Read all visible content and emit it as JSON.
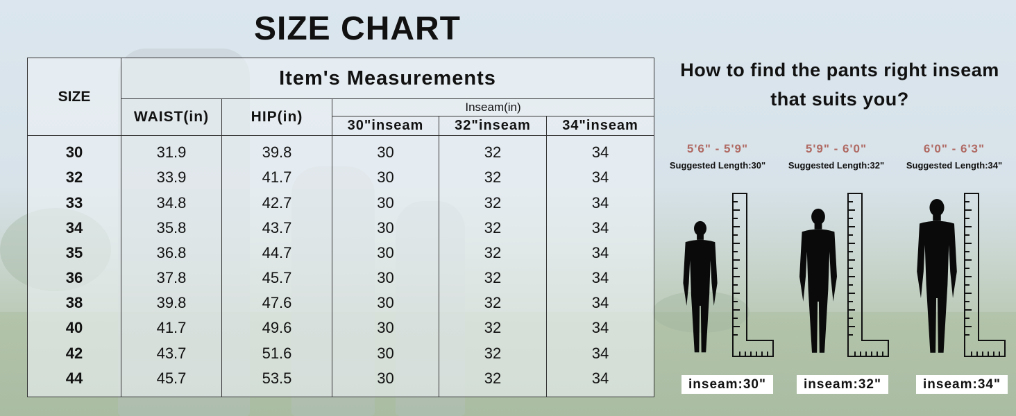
{
  "title": "SIZE CHART",
  "table": {
    "size_header": "SIZE",
    "measurements_header": "Item's Measurements",
    "waist_header": "WAIST(in)",
    "hip_header": "HIP(in)",
    "inseam_group_header": "Inseam(in)",
    "inseam_sub_headers": [
      "30\"inseam",
      "32\"inseam",
      "34\"inseam"
    ],
    "rows": [
      {
        "size": "30",
        "waist": "31.9",
        "hip": "39.8",
        "i30": "30",
        "i32": "32",
        "i34": "34"
      },
      {
        "size": "32",
        "waist": "33.9",
        "hip": "41.7",
        "i30": "30",
        "i32": "32",
        "i34": "34"
      },
      {
        "size": "33",
        "waist": "34.8",
        "hip": "42.7",
        "i30": "30",
        "i32": "32",
        "i34": "34"
      },
      {
        "size": "34",
        "waist": "35.8",
        "hip": "43.7",
        "i30": "30",
        "i32": "32",
        "i34": "34"
      },
      {
        "size": "35",
        "waist": "36.8",
        "hip": "44.7",
        "i30": "30",
        "i32": "32",
        "i34": "34"
      },
      {
        "size": "36",
        "waist": "37.8",
        "hip": "45.7",
        "i30": "30",
        "i32": "32",
        "i34": "34"
      },
      {
        "size": "38",
        "waist": "39.8",
        "hip": "47.6",
        "i30": "30",
        "i32": "32",
        "i34": "34"
      },
      {
        "size": "40",
        "waist": "41.7",
        "hip": "49.6",
        "i30": "30",
        "i32": "32",
        "i34": "34"
      },
      {
        "size": "42",
        "waist": "43.7",
        "hip": "51.6",
        "i30": "30",
        "i32": "32",
        "i34": "34"
      },
      {
        "size": "44",
        "waist": "45.7",
        "hip": "53.5",
        "i30": "30",
        "i32": "32",
        "i34": "34"
      }
    ]
  },
  "guide": {
    "title_line1": "How to find the pants right inseam",
    "title_line2": "that suits you?",
    "figures": [
      {
        "range": "5'6\" - 5'9\"",
        "suggested": "Suggested Length:30\"",
        "inseam_label": "inseam:30\""
      },
      {
        "range": "5'9\" - 6'0\"",
        "suggested": "Suggested Length:32\"",
        "inseam_label": "inseam:32\""
      },
      {
        "range": "6'0\" - 6'3\"",
        "suggested": "Suggested Length:34\"",
        "inseam_label": "inseam:34\""
      }
    ]
  },
  "colors": {
    "range_text": "#b06a63",
    "silhouette": "#0a0a0a",
    "table_border": "#333333"
  }
}
